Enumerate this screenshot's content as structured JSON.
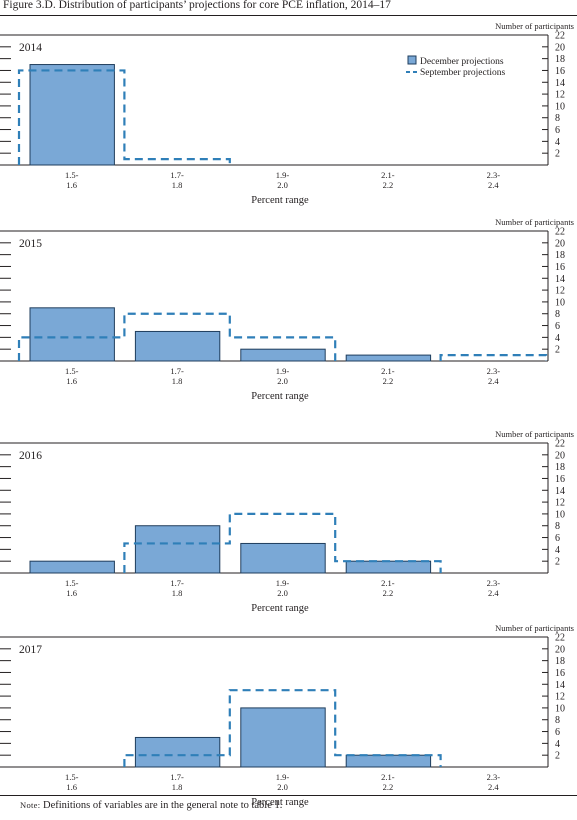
{
  "figure_title": "Figure 3.D. Distribution of participants’ projections for core PCE inflation, 2014–17",
  "note": {
    "label": "Note:",
    "text": " Definitions of variables are in the general note to table 1."
  },
  "colors": {
    "december_fill": "#7aa8d6",
    "december_stroke": "#1f3d5c",
    "september_line": "#2f7fb8",
    "axis": "#231f20"
  },
  "chart_data": [
    {
      "type": "bar",
      "panel_label": "2014",
      "categories": [
        "1.5-\n1.6",
        "1.7-\n1.8",
        "1.9-\n2.0",
        "2.1-\n2.2",
        "2.3-\n2.4"
      ],
      "series": [
        {
          "name": "December projections",
          "style": "bar",
          "values": [
            17,
            0,
            0,
            0,
            0
          ]
        },
        {
          "name": "September projections",
          "style": "dashed-outline",
          "values": [
            16,
            1,
            0,
            0,
            0
          ]
        }
      ],
      "xlabel": "Percent range",
      "ylabel": "Number of participants",
      "ylim": [
        0,
        22
      ],
      "yticks": [
        2,
        4,
        6,
        8,
        10,
        12,
        14,
        16,
        18,
        20,
        22
      ],
      "legend": {
        "placement": "top-right",
        "entries": [
          "December projections",
          "September projections"
        ]
      }
    },
    {
      "type": "bar",
      "panel_label": "2015",
      "categories": [
        "1.5-\n1.6",
        "1.7-\n1.8",
        "1.9-\n2.0",
        "2.1-\n2.2",
        "2.3-\n2.4"
      ],
      "series": [
        {
          "name": "December projections",
          "style": "bar",
          "values": [
            9,
            5,
            2,
            1,
            0
          ]
        },
        {
          "name": "September projections",
          "style": "dashed-outline",
          "values": [
            4,
            8,
            4,
            0,
            1
          ]
        }
      ],
      "xlabel": "Percent range",
      "ylabel": "Number of participants",
      "ylim": [
        0,
        22
      ],
      "yticks": [
        2,
        4,
        6,
        8,
        10,
        12,
        14,
        16,
        18,
        20,
        22
      ]
    },
    {
      "type": "bar",
      "panel_label": "2016",
      "categories": [
        "1.5-\n1.6",
        "1.7-\n1.8",
        "1.9-\n2.0",
        "2.1-\n2.2",
        "2.3-\n2.4"
      ],
      "series": [
        {
          "name": "December projections",
          "style": "bar",
          "values": [
            2,
            8,
            5,
            2,
            0
          ]
        },
        {
          "name": "September projections",
          "style": "dashed-outline",
          "values": [
            0,
            5,
            10,
            2,
            0
          ]
        }
      ],
      "xlabel": "Percent range",
      "ylabel": "Number of participants",
      "ylim": [
        0,
        22
      ],
      "yticks": [
        2,
        4,
        6,
        8,
        10,
        12,
        14,
        16,
        18,
        20,
        22
      ]
    },
    {
      "type": "bar",
      "panel_label": "2017",
      "categories": [
        "1.5-\n1.6",
        "1.7-\n1.8",
        "1.9-\n2.0",
        "2.1-\n2.2",
        "2.3-\n2.4"
      ],
      "series": [
        {
          "name": "December projections",
          "style": "bar",
          "values": [
            0,
            5,
            10,
            2,
            0
          ]
        },
        {
          "name": "September projections",
          "style": "dashed-outline",
          "values": [
            0,
            2,
            13,
            2,
            0
          ]
        }
      ],
      "xlabel": "Percent range",
      "ylabel": "Number of participants",
      "ylim": [
        0,
        22
      ],
      "yticks": [
        2,
        4,
        6,
        8,
        10,
        12,
        14,
        16,
        18,
        20,
        22
      ]
    }
  ]
}
